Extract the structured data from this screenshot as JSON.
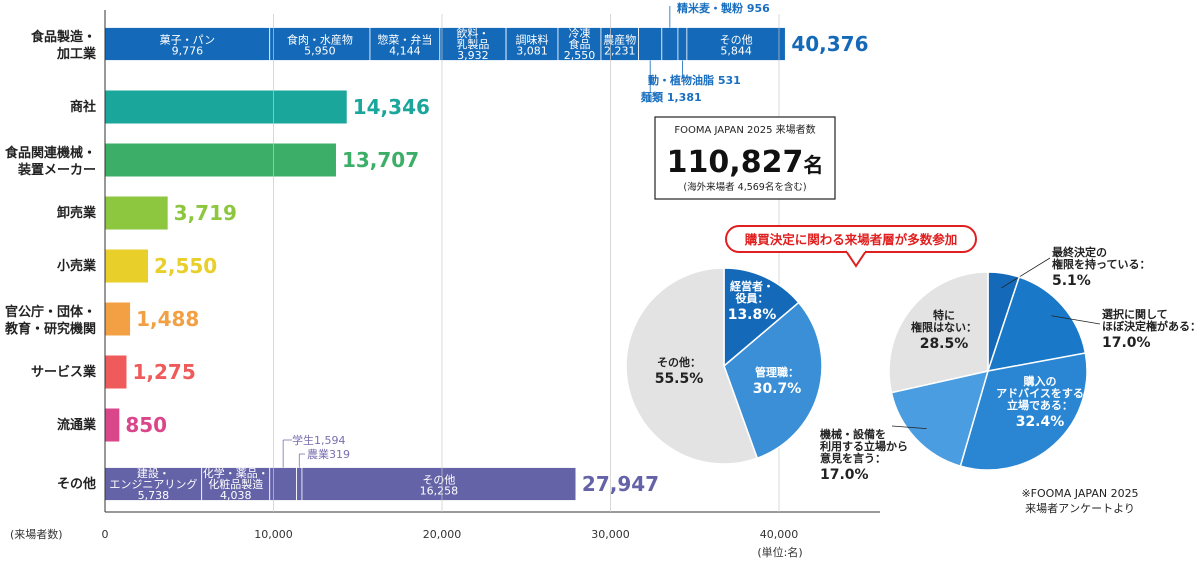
{
  "chart_data": [
    {
      "type": "bar",
      "orientation": "horizontal",
      "stacked": true,
      "axis_label": "(来場者数)",
      "unit_label": "(単位:名)",
      "xlim": [
        0,
        45000
      ],
      "ticks": [
        "0",
        "10,000",
        "20,000",
        "30,000",
        "40,000"
      ],
      "tick_values": [
        0,
        10000,
        20000,
        30000,
        40000
      ],
      "colors": {
        "blue": "#1469b8",
        "teal": "#1aa69a",
        "green": "#3cae67",
        "lime": "#8dc63f",
        "yellow": "#e8cf2a",
        "orange": "#f2a043",
        "red": "#ef5b5b",
        "pink": "#d9478a",
        "purple": "#6563a8"
      },
      "rows": [
        {
          "category": "食品製造・\n加工業",
          "total_label": "40,376",
          "color": "#1469b8",
          "segments": [
            {
              "label": "菓子・パン",
              "value": 9776,
              "value_label": "9,776"
            },
            {
              "label": "食肉・水産物",
              "value": 5950,
              "value_label": "5,950"
            },
            {
              "label": "惣菜・弁当",
              "value": 4144,
              "value_label": "4,144"
            },
            {
              "label": "飲料・\n乳製品",
              "value": 3932,
              "value_label": "3,932"
            },
            {
              "label": "調味料",
              "value": 3081,
              "value_label": "3,081"
            },
            {
              "label": "冷凍\n食品",
              "value": 2550,
              "value_label": "2,550"
            },
            {
              "label": "農産物",
              "value": 2231,
              "value_label": "2,231"
            },
            {
              "label": "麺類",
              "value": 1381,
              "value_label": ""
            },
            {
              "label": "精米麦・製粉",
              "value": 956,
              "value_label": ""
            },
            {
              "label": "動・植物油脂",
              "value": 531,
              "value_label": ""
            },
            {
              "label": "その他",
              "value": 5844,
              "value_label": "5,844"
            }
          ],
          "callouts": {
            "top": "精米麦・製粉 956",
            "bottom1": "動・植物油脂 531",
            "bottom2": "麺類 1,381"
          }
        },
        {
          "category": "商社",
          "value": 14346,
          "total_label": "14,346",
          "color": "#1aa69a"
        },
        {
          "category": "食品関連機械・\n装置メーカー",
          "value": 13707,
          "total_label": "13,707",
          "color": "#3cae67"
        },
        {
          "category": "卸売業",
          "value": 3719,
          "total_label": "3,719",
          "color": "#8dc63f"
        },
        {
          "category": "小売業",
          "value": 2550,
          "total_label": "2,550",
          "color": "#e8cf2a"
        },
        {
          "category": "官公庁・団体・\n教育・研究機関",
          "value": 1488,
          "total_label": "1,488",
          "color": "#f2a043"
        },
        {
          "category": "サービス業",
          "value": 1275,
          "total_label": "1,275",
          "color": "#ef5b5b"
        },
        {
          "category": "流通業",
          "value": 850,
          "total_label": "850",
          "color": "#d9478a"
        },
        {
          "category": "その他",
          "total_label": "27,947",
          "color": "#6563a8",
          "segments": [
            {
              "label": "建設・\nエンジニアリング",
              "value": 5738,
              "value_label": "5,738"
            },
            {
              "label": "化学・薬品・\n化粧品製造",
              "value": 4038,
              "value_label": "4,038"
            },
            {
              "label": "学生",
              "value": 1594,
              "value_label": ""
            },
            {
              "label": "農業",
              "value": 319,
              "value_label": ""
            },
            {
              "label": "その他",
              "value": 16258,
              "value_label": "16,258"
            }
          ],
          "callouts": {
            "top": "学生1,594",
            "bottom": "農業319"
          }
        }
      ]
    },
    {
      "type": "pie",
      "segments": [
        {
          "label": "経営者・\n役員：",
          "value": 13.8,
          "value_label": "13.8%",
          "color": "#1469b8"
        },
        {
          "label": "管理職：",
          "value": 30.7,
          "value_label": "30.7%",
          "color": "#3a8fd6"
        },
        {
          "label": "その他：",
          "value": 55.5,
          "value_label": "55.5%",
          "color": "#e3e3e3"
        }
      ]
    },
    {
      "type": "pie",
      "segments": [
        {
          "label": "最終決定の\n権限を持っている：",
          "value": 5.1,
          "value_label": "5.1%",
          "color": "#1469b8"
        },
        {
          "label": "選択に関して\nほぼ決定権がある：",
          "value": 17.0,
          "value_label": "17.0%",
          "color": "#1a78c8"
        },
        {
          "label": "購入の\nアドバイスをする\n立場である：",
          "value": 32.4,
          "value_label": "32.4%",
          "color": "#2a86d2"
        },
        {
          "label": "機械・設備を\n利用する立場から\n意見を言う：",
          "value": 17.0,
          "value_label": "17.0%",
          "color": "#4a9de0"
        },
        {
          "label": "特に\n権限はない：",
          "value": 28.5,
          "value_label": "28.5%",
          "color": "#e3e3e3"
        }
      ]
    }
  ],
  "visitors_box": {
    "heading": "FOOMA JAPAN 2025 来場者数",
    "number": "110,827",
    "unit": "名",
    "note": "(海外来場者 4,569名を含む)"
  },
  "banner": "購買決定に関わる来場者層が多数参加",
  "source_note": [
    "※FOOMA JAPAN 2025",
    "来場者アンケートより"
  ]
}
